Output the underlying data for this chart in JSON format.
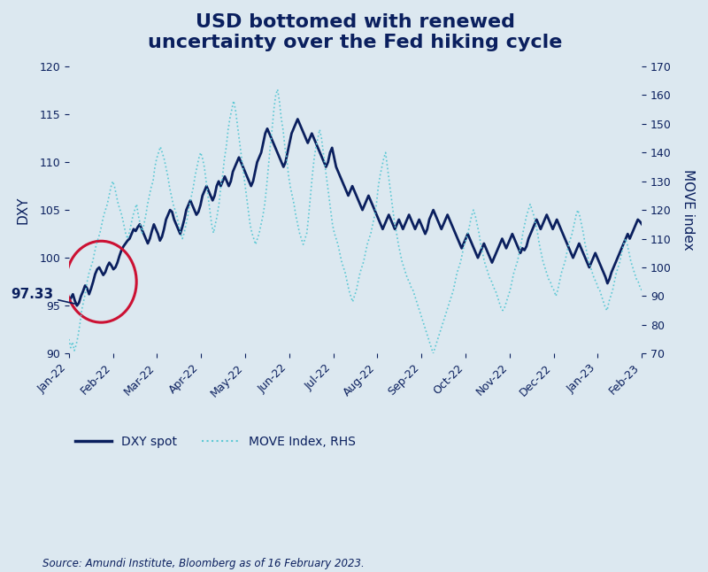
{
  "title": "USD bottomed with renewed\nuncertainty over the Fed hiking cycle",
  "title_fontsize": 16,
  "ylabel_left": "DXY",
  "ylabel_right": "MOVE index",
  "source_text": "Source: Amundi Institute, Bloomberg as of 16 February 2023.",
  "background_color": "#dce8f0",
  "plot_background_color": "#dce8f0",
  "dxy_color": "#0a1f5e",
  "move_color": "#5bc8d4",
  "ylim_left": [
    90,
    120
  ],
  "ylim_right": [
    70,
    170
  ],
  "yticks_left": [
    90,
    95,
    100,
    105,
    110,
    115,
    120
  ],
  "yticks_right": [
    70,
    80,
    90,
    100,
    110,
    120,
    130,
    140,
    150,
    160,
    170
  ],
  "annotation_text": "97.33",
  "legend_dxy": "DXY spot",
  "legend_move": "MOVE Index, RHS",
  "xtick_labels": [
    "Jan-22",
    "Feb-22",
    "Mar-22",
    "Apr-22",
    "May-22",
    "Jun-22",
    "Jul-22",
    "Aug-22",
    "Sep-22",
    "Oct-22",
    "Nov-22",
    "Dec-22",
    "Jan-23",
    "Feb-23"
  ],
  "dxy_values": [
    95.5,
    95.8,
    96.2,
    95.5,
    95.0,
    95.3,
    96.0,
    96.5,
    97.1,
    96.8,
    96.2,
    96.8,
    97.5,
    98.3,
    98.8,
    99.0,
    98.6,
    98.2,
    98.5,
    99.1,
    99.5,
    99.2,
    98.8,
    99.0,
    99.5,
    100.2,
    100.8,
    101.2,
    101.5,
    101.8,
    102.0,
    102.5,
    103.0,
    102.8,
    103.2,
    103.5,
    103.0,
    102.5,
    102.0,
    101.5,
    102.0,
    102.8,
    103.5,
    103.0,
    102.5,
    101.8,
    102.2,
    103.0,
    104.0,
    104.5,
    105.0,
    104.8,
    104.0,
    103.5,
    103.0,
    102.5,
    103.2,
    104.0,
    105.0,
    105.5,
    106.0,
    105.5,
    105.0,
    104.5,
    104.8,
    105.5,
    106.5,
    107.0,
    107.5,
    107.0,
    106.5,
    106.0,
    106.5,
    107.5,
    108.0,
    107.5,
    108.0,
    108.5,
    108.0,
    107.5,
    108.0,
    109.0,
    109.5,
    110.0,
    110.5,
    110.0,
    109.5,
    109.0,
    108.5,
    108.0,
    107.5,
    108.0,
    109.0,
    110.0,
    110.5,
    111.0,
    112.0,
    113.0,
    113.5,
    113.0,
    112.5,
    112.0,
    111.5,
    111.0,
    110.5,
    110.0,
    109.5,
    110.0,
    111.0,
    112.0,
    113.0,
    113.5,
    114.0,
    114.5,
    114.0,
    113.5,
    113.0,
    112.5,
    112.0,
    112.5,
    113.0,
    112.5,
    112.0,
    111.5,
    111.0,
    110.5,
    110.0,
    109.5,
    110.0,
    111.0,
    111.5,
    110.5,
    109.5,
    109.0,
    108.5,
    108.0,
    107.5,
    107.0,
    106.5,
    107.0,
    107.5,
    107.0,
    106.5,
    106.0,
    105.5,
    105.0,
    105.5,
    106.0,
    106.5,
    106.0,
    105.5,
    105.0,
    104.5,
    104.0,
    103.5,
    103.0,
    103.5,
    104.0,
    104.5,
    104.0,
    103.5,
    103.0,
    103.5,
    104.0,
    103.5,
    103.0,
    103.5,
    104.0,
    104.5,
    104.0,
    103.5,
    103.0,
    103.5,
    104.0,
    103.5,
    103.0,
    102.5,
    103.0,
    104.0,
    104.5,
    105.0,
    104.5,
    104.0,
    103.5,
    103.0,
    103.5,
    104.0,
    104.5,
    104.0,
    103.5,
    103.0,
    102.5,
    102.0,
    101.5,
    101.0,
    101.5,
    102.0,
    102.5,
    102.0,
    101.5,
    101.0,
    100.5,
    100.0,
    100.5,
    101.0,
    101.5,
    101.0,
    100.5,
    100.0,
    99.5,
    100.0,
    100.5,
    101.0,
    101.5,
    102.0,
    101.5,
    101.0,
    101.5,
    102.0,
    102.5,
    102.0,
    101.5,
    101.0,
    100.5,
    101.0,
    100.8,
    101.2,
    102.0,
    102.5,
    103.0,
    103.5,
    104.0,
    103.5,
    103.0,
    103.5,
    104.0,
    104.5,
    104.0,
    103.5,
    103.0,
    103.5,
    104.0,
    103.5,
    103.0,
    102.5,
    102.0,
    101.5,
    101.0,
    100.5,
    100.0,
    100.5,
    101.0,
    101.5,
    101.0,
    100.5,
    100.0,
    99.5,
    99.0,
    99.5,
    100.0,
    100.5,
    100.0,
    99.5,
    99.0,
    98.5,
    98.0,
    97.33,
    97.8,
    98.5,
    99.0,
    99.5,
    100.0,
    100.5,
    101.0,
    101.5,
    102.0,
    102.5,
    102.0,
    102.5,
    103.0,
    103.5,
    104.0,
    103.8,
    103.5
  ],
  "move_values": [
    75,
    72,
    74,
    71,
    73,
    76,
    80,
    85,
    88,
    91,
    95,
    98,
    100,
    102,
    105,
    108,
    110,
    112,
    115,
    118,
    120,
    122,
    125,
    128,
    130,
    128,
    125,
    122,
    120,
    118,
    115,
    112,
    110,
    112,
    115,
    118,
    120,
    122,
    118,
    115,
    112,
    115,
    118,
    122,
    125,
    128,
    130,
    135,
    138,
    140,
    142,
    140,
    138,
    135,
    132,
    128,
    125,
    122,
    120,
    118,
    115,
    112,
    110,
    112,
    115,
    118,
    122,
    125,
    128,
    132,
    135,
    138,
    140,
    138,
    135,
    130,
    125,
    120,
    115,
    112,
    115,
    118,
    122,
    128,
    132,
    138,
    142,
    148,
    152,
    155,
    158,
    155,
    150,
    145,
    140,
    135,
    130,
    125,
    120,
    115,
    112,
    110,
    108,
    110,
    112,
    115,
    118,
    122,
    128,
    135,
    142,
    148,
    155,
    160,
    162,
    158,
    152,
    148,
    142,
    138,
    132,
    128,
    125,
    122,
    118,
    115,
    112,
    110,
    108,
    110,
    112,
    118,
    125,
    132,
    138,
    142,
    145,
    148,
    145,
    140,
    135,
    130,
    125,
    120,
    115,
    112,
    110,
    108,
    105,
    102,
    100,
    98,
    95,
    92,
    90,
    88,
    90,
    92,
    95,
    98,
    100,
    102,
    105,
    108,
    110,
    112,
    115,
    118,
    122,
    128,
    132,
    135,
    138,
    140,
    135,
    130,
    125,
    120,
    115,
    112,
    108,
    105,
    102,
    100,
    98,
    96,
    95,
    93,
    92,
    90,
    88,
    86,
    84,
    82,
    80,
    78,
    76,
    74,
    72,
    70,
    72,
    74,
    76,
    78,
    80,
    82,
    84,
    86,
    88,
    90,
    92,
    95,
    98,
    100,
    102,
    105,
    108,
    110,
    112,
    115,
    118,
    120,
    118,
    115,
    112,
    108,
    105,
    102,
    100,
    98,
    96,
    95,
    93,
    92,
    90,
    88,
    86,
    85,
    86,
    88,
    90,
    92,
    95,
    98,
    100,
    102,
    105,
    108,
    112,
    115,
    118,
    120,
    122,
    120,
    118,
    115,
    112,
    108,
    105,
    102,
    100,
    98,
    96,
    95,
    93,
    92,
    90,
    92,
    95,
    98,
    100,
    102,
    105,
    108,
    110,
    112,
    115,
    118,
    120,
    118,
    115,
    112,
    108,
    105,
    102,
    100,
    98,
    96,
    95,
    93,
    92,
    90,
    88,
    86,
    85,
    88,
    90,
    92,
    95,
    98,
    100,
    102,
    105,
    108,
    110,
    108,
    105,
    102,
    100,
    98,
    96,
    95,
    93,
    92
  ]
}
